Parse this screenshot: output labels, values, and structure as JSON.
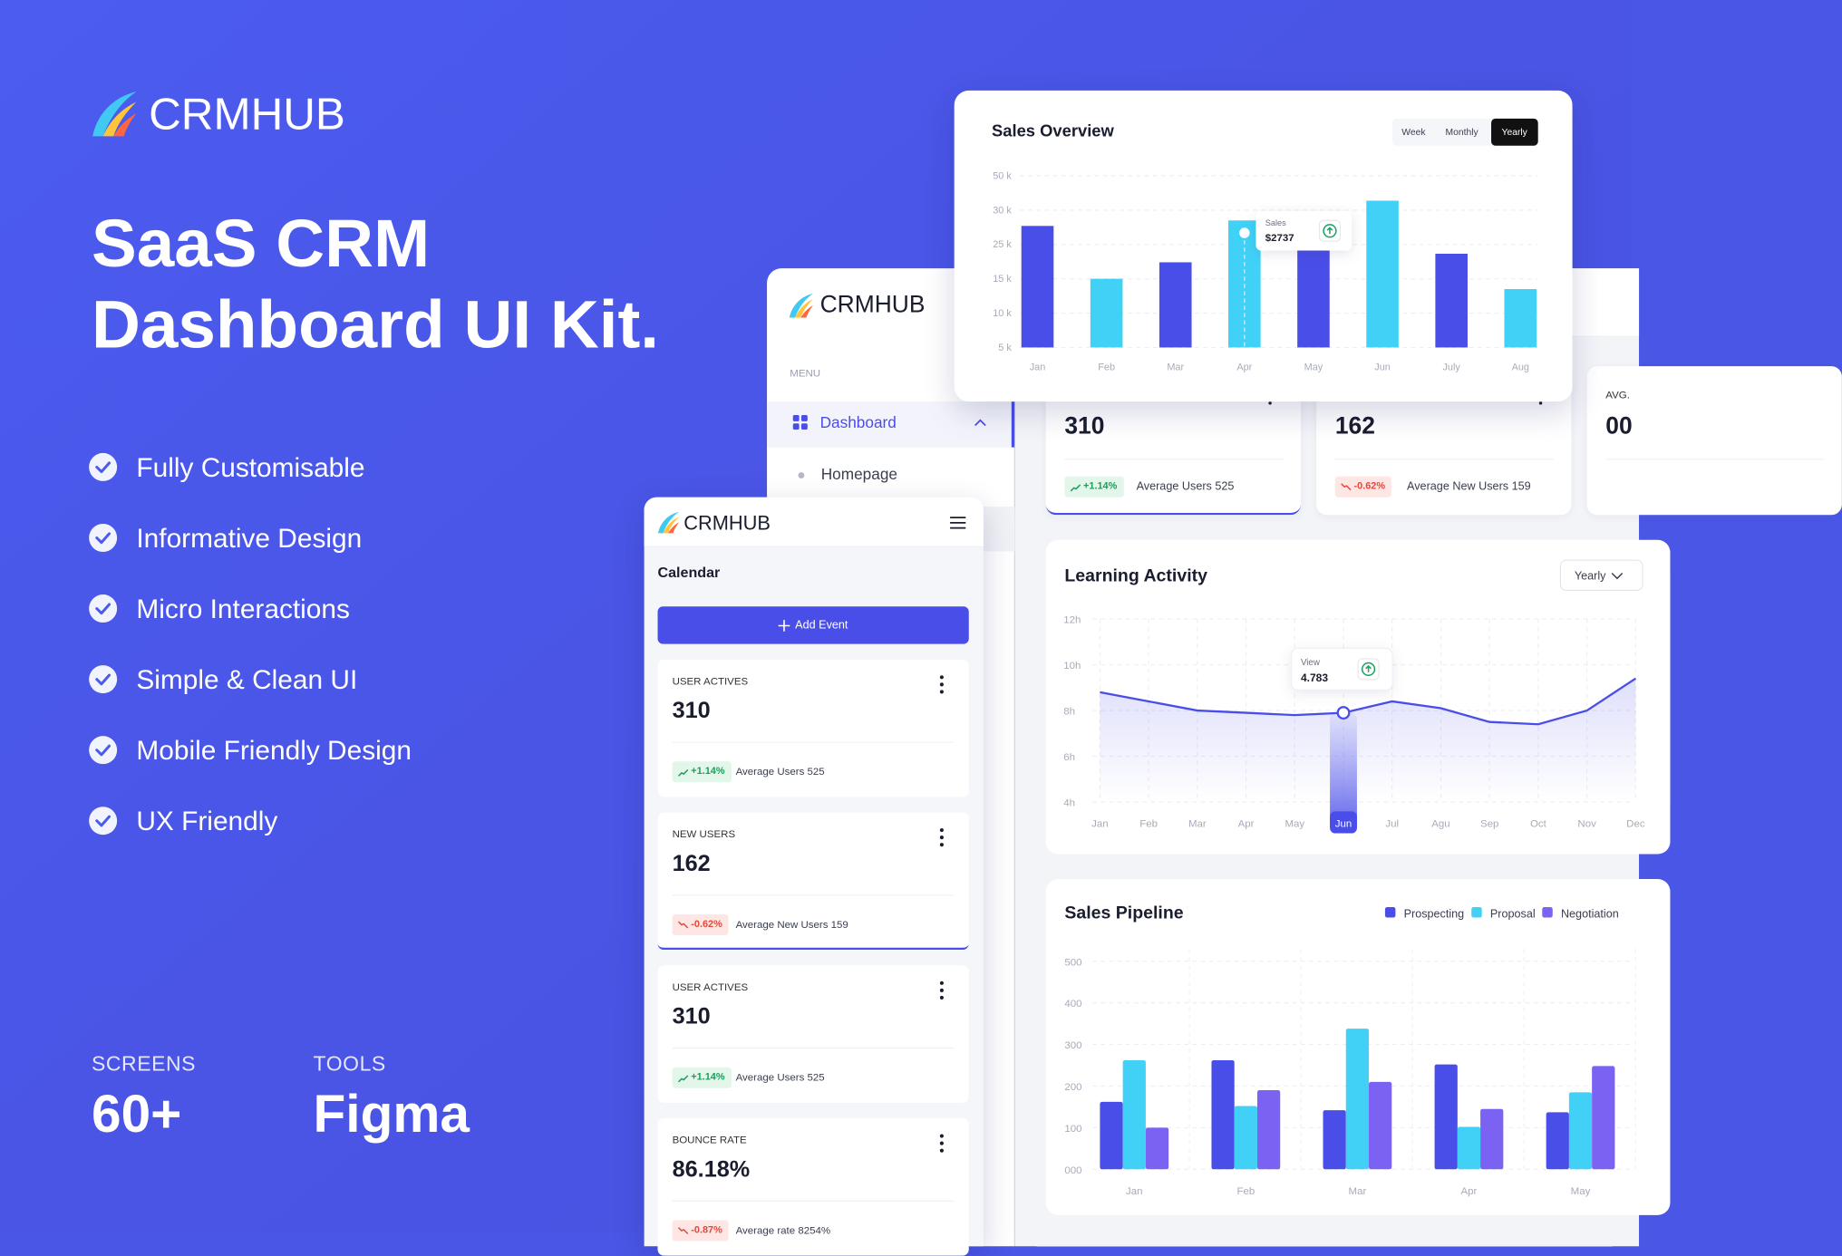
{
  "brand": {
    "logo": "CRMHUB",
    "title_line1": "SaaS CRM",
    "title_line2": "Dashboard UI Kit."
  },
  "features": [
    "Fully Customisable",
    "Informative Design",
    "Micro Interactions",
    "Simple & Clean UI",
    "Mobile Friendly Design",
    "UX Friendly"
  ],
  "stats": [
    {
      "label": "SCREENS",
      "value": "60+"
    },
    {
      "label": "TOOLS",
      "value": "Figma"
    }
  ],
  "sidebar": {
    "logo": "CRMHUB",
    "menu_label": "MENU",
    "items": [
      "Dashboard",
      "Homepage"
    ]
  },
  "sales_overview": {
    "type": "bar",
    "title": "Sales Overview",
    "tabs": [
      "Week",
      "Monthly",
      "Yearly"
    ],
    "active_tab": 2,
    "categories": [
      "Jan",
      "Feb",
      "Mar",
      "Apr",
      "May",
      "Jun",
      "July",
      "Aug"
    ],
    "values": [
      27700,
      15000,
      19800,
      28500,
      23500,
      35500,
      22300,
      13500
    ],
    "colors": [
      "#4a4ee8",
      "#41d1f7",
      "#4a4ee8",
      "#41d1f7",
      "#4a4ee8",
      "#41d1f7",
      "#4a4ee8",
      "#41d1f7"
    ],
    "ylim": [
      5000,
      50000
    ],
    "yticks": [
      {
        "value": 50000,
        "label": "50 k"
      },
      {
        "value": 30000,
        "label": "30 k"
      },
      {
        "value": 25000,
        "label": "25 k"
      },
      {
        "value": 15000,
        "label": "15 k"
      },
      {
        "value": 10000,
        "label": "10 k"
      },
      {
        "value": 5000,
        "label": "5 k"
      }
    ],
    "grid": true,
    "selected": 3,
    "tooltip": {
      "label": "Sales",
      "value": "$2737"
    }
  },
  "dashboard_cards": [
    {
      "value": "310",
      "change": "+1.14%",
      "note": "Average Users 525"
    },
    {
      "value": "162",
      "change": "-0.62%",
      "note": "Average New Users 159"
    },
    {
      "label": "AVG.",
      "value": "00"
    }
  ],
  "learning_activity": {
    "type": "line",
    "title": "Learning Activity",
    "filter": "Yearly",
    "categories": [
      "Jan",
      "Feb",
      "Mar",
      "Apr",
      "May",
      "Jun",
      "Jul",
      "Agu",
      "Sep",
      "Oct",
      "Nov",
      "Dec"
    ],
    "values": [
      8.8,
      8.4,
      8.0,
      7.9,
      7.8,
      7.9,
      8.4,
      8.1,
      7.5,
      7.4,
      8.0,
      9.4
    ],
    "color": "#4a4ee8",
    "ylim": [
      4,
      12
    ],
    "yticks": [
      {
        "value": 12,
        "label": "12h"
      },
      {
        "value": 10,
        "label": "10h"
      },
      {
        "value": 8,
        "label": "8h"
      },
      {
        "value": 6,
        "label": "6h"
      },
      {
        "value": 4,
        "label": "4h"
      }
    ],
    "grid": true,
    "selected": 5,
    "tooltip": {
      "label": "View",
      "value": "4.783"
    }
  },
  "sales_pipeline": {
    "type": "bar",
    "title": "Sales Pipeline",
    "categories": [
      "Jan",
      "Feb",
      "Mar",
      "Apr",
      "May"
    ],
    "series": [
      {
        "name": "Prospecting",
        "color": "#4a4ee8",
        "values": [
          162,
          262,
          142,
          252,
          137
        ]
      },
      {
        "name": "Proposal",
        "color": "#41d1f7",
        "values": [
          262,
          152,
          338,
          102,
          185
        ]
      },
      {
        "name": "Negotiation",
        "color": "#7b62f2",
        "values": [
          100,
          190,
          210,
          145,
          248
        ]
      }
    ],
    "ylim": [
      0,
      500
    ],
    "yticks": [
      500,
      400,
      300,
      200,
      100,
      {
        "value": 0,
        "label": "000"
      }
    ],
    "grid": true
  },
  "mobile": {
    "logo": "CRMHUB",
    "heading": "Calendar",
    "button": "Add Event",
    "cards": [
      {
        "label": "USER ACTIVES",
        "value": "310",
        "change": "+1.14%",
        "note": "Average Users 525"
      },
      {
        "label": "NEW USERS",
        "value": "162",
        "change": "-0.62%",
        "note": "Average New Users 159"
      },
      {
        "label": "USER ACTIVES",
        "value": "310",
        "change": "+1.14%",
        "note": "Average Users 525"
      },
      {
        "label": "BOUNCE RATE",
        "value": "86.18%",
        "change": "-0.87%",
        "note": "Average rate 8254%"
      }
    ]
  }
}
